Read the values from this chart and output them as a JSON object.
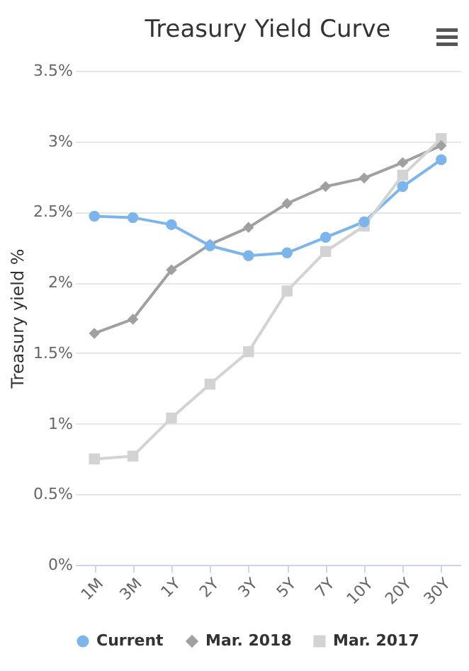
{
  "chart_data": {
    "type": "line",
    "title": "Treasury Yield Curve",
    "ylabel": "Treasury yield %",
    "categories": [
      "1M",
      "3M",
      "1Y",
      "2Y",
      "3Y",
      "5Y",
      "7Y",
      "10Y",
      "20Y",
      "30Y"
    ],
    "series": [
      {
        "name": "Current",
        "color": "#7cb5ec",
        "marker": "circle",
        "values": [
          2.47,
          2.46,
          2.41,
          2.26,
          2.19,
          2.21,
          2.32,
          2.43,
          2.68,
          2.87
        ]
      },
      {
        "name": "Mar. 2018",
        "color": "#a0a0a0",
        "marker": "diamond",
        "values": [
          1.64,
          1.74,
          2.09,
          2.27,
          2.39,
          2.56,
          2.68,
          2.74,
          2.85,
          2.97
        ]
      },
      {
        "name": "Mar. 2017",
        "color": "#d3d3d3",
        "marker": "square",
        "values": [
          0.75,
          0.77,
          1.04,
          1.28,
          1.51,
          1.94,
          2.22,
          2.4,
          2.76,
          3.02
        ]
      }
    ],
    "ylim": [
      0,
      3.5
    ],
    "yticks": [
      {
        "value": 0,
        "label": "0%"
      },
      {
        "value": 0.5,
        "label": "0.5%"
      },
      {
        "value": 1,
        "label": "1%"
      },
      {
        "value": 1.5,
        "label": "1.5%"
      },
      {
        "value": 2,
        "label": "2%"
      },
      {
        "value": 2.5,
        "label": "2.5%"
      },
      {
        "value": 3,
        "label": "3%"
      },
      {
        "value": 3.5,
        "label": "3.5%"
      }
    ],
    "grid": "y",
    "legend": "bottom"
  }
}
